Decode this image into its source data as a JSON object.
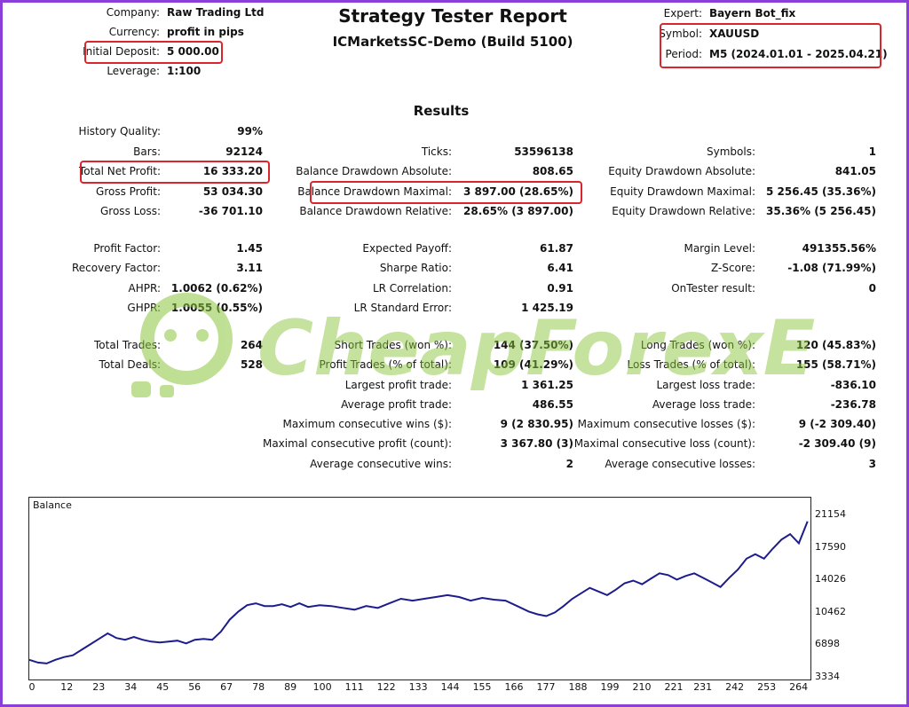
{
  "header": {
    "company_label": "Company:",
    "company_value": "Raw Trading Ltd",
    "currency_label": "Currency:",
    "currency_value": "profit in pips",
    "deposit_label": "Initial Deposit:",
    "deposit_value": "5 000.00",
    "leverage_label": "Leverage:",
    "leverage_value": "1:100",
    "title": "Strategy Tester Report",
    "subtitle": "ICMarketsSC-Demo (Build 5100)",
    "expert_label": "Expert:",
    "expert_value": "Bayern Bot_fix",
    "symbol_label": "Symbol:",
    "symbol_value": "XAUUSD",
    "period_label": "Period:",
    "period_value": "M5 (2024.01.01 - 2025.04.21)"
  },
  "results_title": "Results",
  "stats": {
    "history_quality_label": "History Quality:",
    "history_quality": "99%",
    "bars_label": "Bars:",
    "bars": "92124",
    "ticks_label": "Ticks:",
    "ticks": "53596138",
    "symbols_label": "Symbols:",
    "symbols": "1",
    "net_profit_label": "Total Net Profit:",
    "net_profit": "16 333.20",
    "bal_dd_abs_label": "Balance Drawdown Absolute:",
    "bal_dd_abs": "808.65",
    "eq_dd_abs_label": "Equity Drawdown Absolute:",
    "eq_dd_abs": "841.05",
    "gross_profit_label": "Gross Profit:",
    "gross_profit": "53 034.30",
    "bal_dd_max_label": "Balance Drawdown Maximal:",
    "bal_dd_max": "3 897.00 (28.65%)",
    "eq_dd_max_label": "Equity Drawdown Maximal:",
    "eq_dd_max": "5 256.45 (35.36%)",
    "gross_loss_label": "Gross Loss:",
    "gross_loss": "-36 701.10",
    "bal_dd_rel_label": "Balance Drawdown Relative:",
    "bal_dd_rel": "28.65% (3 897.00)",
    "eq_dd_rel_label": "Equity Drawdown Relative:",
    "eq_dd_rel": "35.36% (5 256.45)",
    "profit_factor_label": "Profit Factor:",
    "profit_factor": "1.45",
    "expected_payoff_label": "Expected Payoff:",
    "expected_payoff": "61.87",
    "margin_level_label": "Margin Level:",
    "margin_level": "491355.56%",
    "recovery_factor_label": "Recovery Factor:",
    "recovery_factor": "3.11",
    "sharpe_label": "Sharpe Ratio:",
    "sharpe": "6.41",
    "zscore_label": "Z-Score:",
    "zscore": "-1.08 (71.99%)",
    "ahpr_label": "AHPR:",
    "ahpr": "1.0062 (0.62%)",
    "lr_corr_label": "LR Correlation:",
    "lr_corr": "0.91",
    "ontester_label": "OnTester result:",
    "ontester": "0",
    "ghpr_label": "GHPR:",
    "ghpr": "1.0055 (0.55%)",
    "lr_stderr_label": "LR Standard Error:",
    "lr_stderr": "1 425.19",
    "total_trades_label": "Total Trades:",
    "total_trades": "264",
    "short_trades_label": "Short Trades (won %):",
    "short_trades": "144 (37.50%)",
    "long_trades_label": "Long Trades (won %):",
    "long_trades": "120 (45.83%)",
    "total_deals_label": "Total Deals:",
    "total_deals": "528",
    "profit_trades_label": "Profit Trades (% of total):",
    "profit_trades": "109 (41.29%)",
    "loss_trades_label": "Loss Trades (% of total):",
    "loss_trades": "155 (58.71%)",
    "largest_profit_label": "Largest profit trade:",
    "largest_profit": "1 361.25",
    "largest_loss_label": "Largest loss trade:",
    "largest_loss": "-836.10",
    "avg_profit_label": "Average profit trade:",
    "avg_profit": "486.55",
    "avg_loss_label": "Average loss trade:",
    "avg_loss": "-236.78",
    "max_consec_wins_label": "Maximum consecutive wins ($):",
    "max_consec_wins": "9 (2 830.95)",
    "max_consec_losses_label": "Maximum consecutive losses ($):",
    "max_consec_losses": "9 (-2 309.40)",
    "maximal_consec_profit_label": "Maximal consecutive profit (count):",
    "maximal_consec_profit": "3 367.80 (3)",
    "maximal_consec_loss_label": "Maximal consecutive loss (count):",
    "maximal_consec_loss": "-2 309.40 (9)",
    "avg_consec_wins_label": "Average consecutive wins:",
    "avg_consec_wins": "2",
    "avg_consec_losses_label": "Average consecutive losses:",
    "avg_consec_losses": "3"
  },
  "watermark": "CheapForexEa",
  "colors": {
    "highlight": "#d8262c",
    "frame": "#8b3fd9",
    "balance_line": "#1c1c8c",
    "watermark": "#8cc63f"
  },
  "chart_data": {
    "type": "line",
    "title": "Balance",
    "y_ticks": [
      "21154",
      "17590",
      "14026",
      "10462",
      "6898",
      "3334"
    ],
    "x_ticks": [
      "0",
      "12",
      "23",
      "34",
      "45",
      "56",
      "67",
      "78",
      "89",
      "100",
      "111",
      "122",
      "133",
      "144",
      "155",
      "166",
      "177",
      "188",
      "199",
      "210",
      "221",
      "231",
      "242",
      "253",
      "264"
    ],
    "xlim": [
      0,
      269
    ],
    "ylim": [
      3334,
      21154
    ],
    "series": [
      {
        "x": [
          0,
          3,
          6,
          9,
          12,
          15,
          18,
          21,
          24,
          27,
          30,
          33,
          36,
          39,
          42,
          45,
          48,
          51,
          54,
          57,
          60,
          63,
          66,
          69,
          72,
          75,
          78,
          81,
          84,
          87,
          90,
          93,
          96,
          100,
          104,
          108,
          112,
          116,
          120,
          124,
          128,
          132,
          136,
          140,
          144,
          148,
          152,
          156,
          160,
          164,
          168,
          172,
          175,
          178,
          181,
          184,
          187,
          190,
          193,
          196,
          199,
          202,
          205,
          208,
          211,
          214,
          217,
          220,
          223,
          226,
          229,
          232,
          235,
          238,
          241,
          244,
          247,
          250,
          253,
          256,
          259,
          262,
          265,
          268
        ],
        "y": [
          5300,
          5000,
          4900,
          5300,
          5600,
          5800,
          6400,
          7000,
          7600,
          8200,
          7700,
          7500,
          7800,
          7500,
          7300,
          7200,
          7300,
          7400,
          7100,
          7500,
          7600,
          7500,
          8400,
          9700,
          10600,
          11300,
          11500,
          11200,
          11200,
          11400,
          11100,
          11500,
          11100,
          11300,
          11200,
          11000,
          10800,
          11200,
          11000,
          11500,
          12000,
          11800,
          12000,
          12200,
          12400,
          12200,
          11800,
          12100,
          11900,
          11800,
          11200,
          10600,
          10300,
          10100,
          10500,
          11200,
          12000,
          12600,
          13200,
          12800,
          12400,
          13000,
          13700,
          14000,
          13600,
          14200,
          14800,
          14600,
          14100,
          14500,
          14800,
          14300,
          13800,
          13300,
          14300,
          15200,
          16400,
          16900,
          16400,
          17500,
          18500,
          19100,
          18100,
          20500
        ]
      }
    ]
  }
}
